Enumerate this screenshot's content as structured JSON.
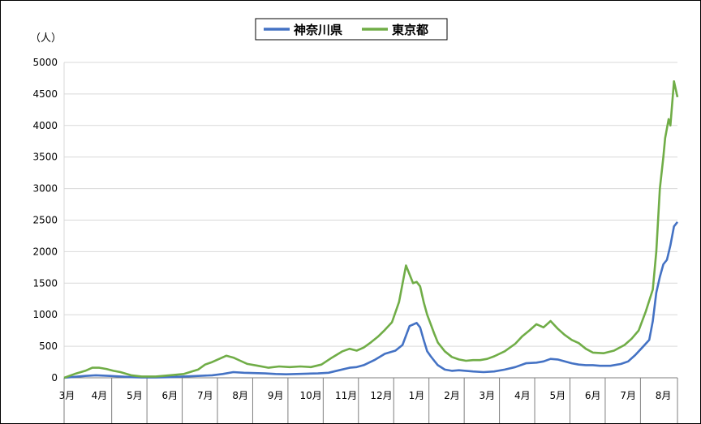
{
  "chart_data": {
    "type": "line",
    "title": "",
    "xlabel": "",
    "ylabel": "（人）",
    "ylim": [
      0,
      5000
    ],
    "yticks": [
      0,
      500,
      1000,
      1500,
      2000,
      2500,
      3000,
      3500,
      4000,
      4500,
      5000
    ],
    "grid": true,
    "legend_position": "top-center",
    "x_range": [
      0,
      17.4
    ],
    "month_labels": [
      "3月",
      "4月",
      "5月",
      "6月",
      "7月",
      "8月",
      "9月",
      "10月",
      "11月",
      "12月",
      "1月",
      "2月",
      "3月",
      "4月",
      "5月",
      "6月",
      "7月",
      "8月"
    ],
    "month_label_pos": [
      0.08,
      1,
      2,
      3,
      4,
      5,
      6,
      7,
      8,
      9,
      10,
      11,
      12,
      13,
      14,
      15,
      16,
      17
    ],
    "month_dividers": [
      0,
      1.35,
      2.35,
      3.35,
      4.35,
      5.35,
      6.35,
      7.35,
      8.35,
      9.35,
      10.35,
      11.35,
      12.35,
      13.35,
      14.35,
      15.35,
      16.35,
      17.4
    ],
    "series": [
      {
        "name": "神奈川県",
        "color": "#4472c4",
        "x": [
          0,
          0.3,
          0.6,
          0.9,
          1.1,
          1.3,
          1.6,
          1.9,
          2.2,
          2.6,
          3.0,
          3.4,
          3.8,
          4.2,
          4.5,
          4.8,
          5.1,
          5.4,
          5.7,
          6.0,
          6.3,
          6.6,
          6.9,
          7.2,
          7.5,
          7.8,
          8.1,
          8.3,
          8.5,
          8.8,
          9.1,
          9.4,
          9.6,
          9.8,
          10.0,
          10.1,
          10.2,
          10.3,
          10.4,
          10.5,
          10.6,
          10.8,
          11.0,
          11.2,
          11.4,
          11.6,
          11.9,
          12.2,
          12.5,
          12.8,
          13.1,
          13.4,
          13.6,
          13.8,
          14.0,
          14.2,
          14.4,
          14.6,
          14.8,
          15.0,
          15.2,
          15.5,
          15.8,
          16.0,
          16.2,
          16.4,
          16.6,
          16.7,
          16.8,
          16.9,
          17.0,
          17.1,
          17.2,
          17.3,
          17.4
        ],
        "values": [
          0,
          15,
          30,
          40,
          35,
          30,
          20,
          10,
          5,
          5,
          10,
          20,
          30,
          40,
          60,
          90,
          80,
          75,
          70,
          60,
          55,
          60,
          65,
          70,
          80,
          120,
          160,
          170,
          200,
          280,
          380,
          430,
          520,
          820,
          870,
          800,
          600,
          420,
          340,
          270,
          200,
          130,
          110,
          120,
          110,
          100,
          90,
          100,
          130,
          170,
          230,
          240,
          260,
          300,
          290,
          260,
          230,
          210,
          200,
          200,
          190,
          190,
          220,
          260,
          360,
          480,
          600,
          900,
          1350,
          1600,
          1800,
          1870,
          2100,
          2400,
          2470
        ]
      },
      {
        "name": "東京都",
        "color": "#70ad47",
        "x": [
          0,
          0.3,
          0.6,
          0.8,
          1.0,
          1.2,
          1.4,
          1.6,
          1.9,
          2.2,
          2.6,
          3.0,
          3.4,
          3.8,
          4.0,
          4.2,
          4.4,
          4.6,
          4.8,
          5.0,
          5.2,
          5.5,
          5.8,
          6.1,
          6.4,
          6.7,
          7.0,
          7.3,
          7.6,
          7.9,
          8.1,
          8.3,
          8.5,
          8.7,
          8.9,
          9.1,
          9.3,
          9.5,
          9.7,
          9.9,
          10.0,
          10.1,
          10.2,
          10.3,
          10.4,
          10.5,
          10.6,
          10.8,
          11.0,
          11.2,
          11.4,
          11.6,
          11.8,
          12.0,
          12.2,
          12.5,
          12.8,
          13.0,
          13.2,
          13.4,
          13.6,
          13.8,
          14.0,
          14.2,
          14.4,
          14.6,
          14.8,
          15.0,
          15.3,
          15.6,
          15.9,
          16.1,
          16.3,
          16.5,
          16.7,
          16.8,
          16.9,
          17.0,
          17.05,
          17.15,
          17.2,
          17.3,
          17.4
        ],
        "values": [
          0,
          60,
          110,
          160,
          160,
          140,
          110,
          90,
          40,
          20,
          20,
          40,
          60,
          130,
          210,
          250,
          300,
          350,
          320,
          270,
          220,
          190,
          160,
          180,
          170,
          180,
          170,
          210,
          320,
          420,
          460,
          430,
          480,
          560,
          650,
          760,
          880,
          1200,
          1780,
          1500,
          1520,
          1450,
          1200,
          1000,
          850,
          700,
          560,
          420,
          330,
          290,
          270,
          280,
          280,
          300,
          340,
          420,
          540,
          660,
          750,
          850,
          800,
          900,
          780,
          680,
          600,
          550,
          460,
          400,
          390,
          430,
          520,
          620,
          750,
          1050,
          1400,
          2000,
          3000,
          3500,
          3800,
          4100,
          4000,
          4700,
          4450
        ]
      }
    ]
  },
  "legend": {
    "items": [
      {
        "label": "神奈川県",
        "color": "#4472c4"
      },
      {
        "label": "東京都",
        "color": "#70ad47"
      }
    ]
  }
}
